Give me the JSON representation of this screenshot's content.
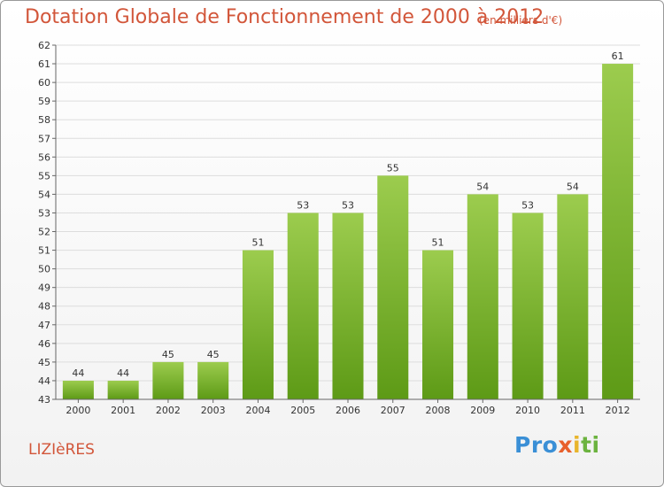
{
  "title": "Dotation Globale de Fonctionnement de 2000 à 2012",
  "subtitle": "(en milliers d'€)",
  "commune": "LIZIèRES",
  "brand": {
    "letters": [
      {
        "char": "P",
        "color": "#3a8fd6"
      },
      {
        "char": "r",
        "color": "#3a8fd6"
      },
      {
        "char": "o",
        "color": "#3a8fd6"
      },
      {
        "char": "x",
        "color": "#e8602c"
      },
      {
        "char": "i",
        "color": "#e8b52c"
      },
      {
        "char": "t",
        "color": "#6cb33f"
      },
      {
        "char": "i",
        "color": "#6cb33f"
      }
    ]
  },
  "colors": {
    "bar_top": "#9ccc4e",
    "bar_bottom": "#5d9a16",
    "grid": "#dddddd",
    "title": "#d2563a"
  },
  "chart_data": {
    "type": "bar",
    "title": "Dotation Globale de Fonctionnement de 2000 à 2012",
    "subtitle": "(en milliers d'€)",
    "xlabel": "",
    "ylabel": "",
    "categories": [
      "2000",
      "2001",
      "2002",
      "2003",
      "2004",
      "2005",
      "2006",
      "2007",
      "2008",
      "2009",
      "2010",
      "2011",
      "2012"
    ],
    "values": [
      44,
      44,
      45,
      45,
      51,
      53,
      53,
      55,
      51,
      54,
      53,
      54,
      61
    ],
    "ylim": [
      43,
      62
    ],
    "yticks": [
      43,
      44,
      45,
      46,
      47,
      48,
      49,
      50,
      51,
      52,
      53,
      54,
      55,
      56,
      57,
      58,
      59,
      60,
      61,
      62
    ],
    "grid": true,
    "data_labels": true
  }
}
